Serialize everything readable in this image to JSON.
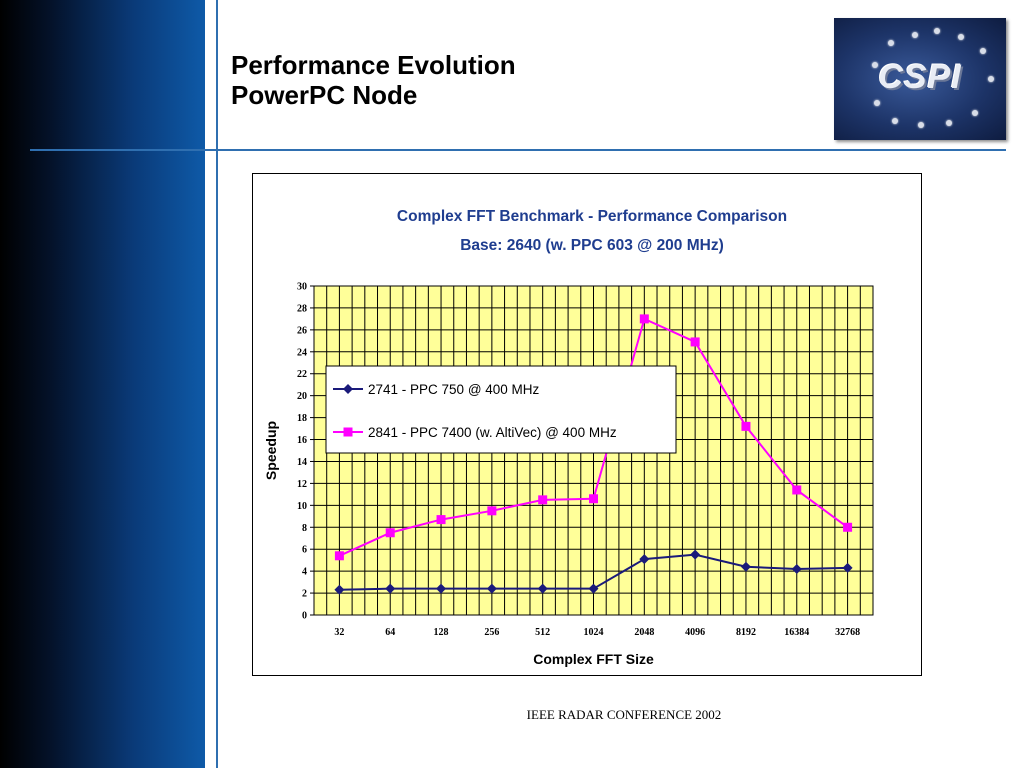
{
  "slide": {
    "title_line1": "Performance Evolution",
    "title_line2": "PowerPC Node",
    "footer": "IEEE RADAR CONFERENCE 2002",
    "logo_text": "CSPI"
  },
  "colors": {
    "sidebar_dark": "#000000",
    "sidebar_light": "#0e5aa8",
    "rule": "#2f6fb0",
    "chart_title": "#1f3d8f",
    "plot_bg": "#ffff99",
    "series1": "#1a1a7a",
    "series2": "#ff00ff"
  },
  "chart_data": {
    "type": "line",
    "title": "Complex FFT Benchmark - Performance Comparison",
    "subtitle": "Base: 2640 (w. PPC 603 @ 200 MHz)",
    "xlabel": "Complex FFT Size",
    "ylabel": "Speedup",
    "categories": [
      "32",
      "64",
      "128",
      "256",
      "512",
      "1024",
      "2048",
      "4096",
      "8192",
      "16384",
      "32768"
    ],
    "ylim": [
      0,
      30
    ],
    "yticks": [
      "0",
      "2",
      "4",
      "6",
      "8",
      "10",
      "12",
      "14",
      "16",
      "18",
      "20",
      "22",
      "24",
      "26",
      "28",
      "30"
    ],
    "grid": true,
    "legend_position": "upper-left",
    "series": [
      {
        "name": "2741  - PPC 750 @ 400 MHz",
        "marker": "diamond",
        "color": "#1a1a7a",
        "values": [
          2.3,
          2.4,
          2.4,
          2.4,
          2.4,
          2.4,
          5.1,
          5.5,
          4.4,
          4.2,
          4.3
        ]
      },
      {
        "name": "2841 - PPC 7400 (w. AltiVec) @ 400 MHz",
        "marker": "square",
        "color": "#ff00ff",
        "values": [
          5.4,
          7.5,
          8.7,
          9.5,
          10.5,
          10.6,
          27.0,
          24.9,
          17.2,
          11.4,
          8.0
        ]
      }
    ]
  }
}
